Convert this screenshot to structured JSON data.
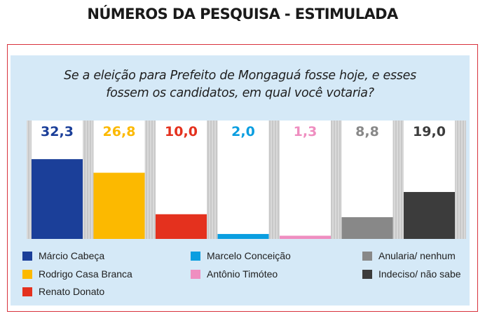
{
  "heading": "NÚMEROS DA PESQUISA - ESTIMULADA",
  "question": [
    "Se a eleição para Prefeito de Mongaguá fosse hoje, e esses",
    "fossem os candidatos, em qual você votaria?"
  ],
  "chart_data": {
    "type": "bar",
    "title": "Se a eleição para Prefeito de Mongaguá fosse hoje, e esses fossem os candidatos, em qual você votaria?",
    "categories": [
      "Márcio Cabeça",
      "Rodrigo Casa Branca",
      "Renato Donato",
      "Marcelo Conceição",
      "Antônio Timóteo",
      "Anularia/ nenhum",
      "Indeciso/ não sabe"
    ],
    "values": [
      32.3,
      26.8,
      10.0,
      2.0,
      1.3,
      8.8,
      19.0
    ],
    "value_labels": [
      "32,3",
      "26,8",
      "10,0",
      "2,0",
      "1,3",
      "8,8",
      "19,0"
    ],
    "colors": [
      "#1b3f99",
      "#fcb900",
      "#e4311e",
      "#0a9ee0",
      "#ef8ec0",
      "#888888",
      "#3c3c3c"
    ],
    "ylim": [
      0,
      40
    ],
    "grid": false,
    "legend_position": "bottom"
  }
}
